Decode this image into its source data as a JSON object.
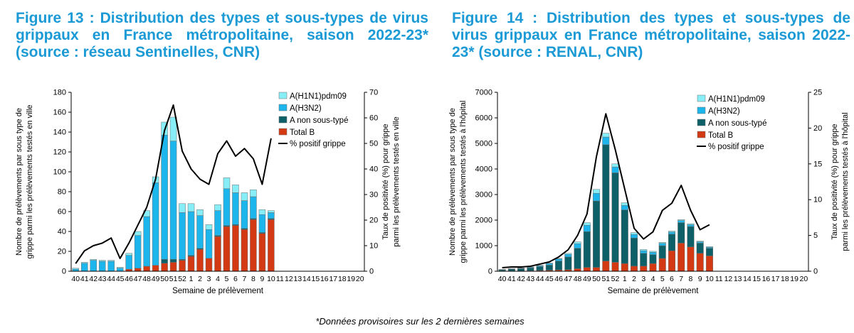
{
  "footnote": "*Données provisoires sur les 2 dernières semaines",
  "colors": {
    "title": "#1b9ad6",
    "h1n1": "#87eef7",
    "h3n2": "#1db6ec",
    "a_nst": "#0d6068",
    "b": "#d33a14",
    "line": "#000000"
  },
  "chart_data": [
    {
      "type": "bar",
      "stacked": true,
      "title": "Figure 13 : Distribution des types et sous-types de virus grippaux en France métropolitaine, saison 2022-23* (source : réseau Sentinelles, CNR)",
      "xlabel": "Semaine de prélèvement",
      "ylabel_line1": "Nombre de prélèvements par sous type de",
      "ylabel_line2": "grippe parmi les prélèvements testés en ville",
      "y2label_line1": "Taux de positivité (%) pour grippe",
      "y2label_line2": "parmi les prélèvements testés en ville",
      "ylim": [
        0,
        180
      ],
      "yticks": [
        "0",
        "20",
        "40",
        "60",
        "80",
        "100",
        "120",
        "140",
        "160",
        "180"
      ],
      "y2lim": [
        0,
        70
      ],
      "y2ticks": [
        "0",
        "10",
        "20",
        "30",
        "40",
        "50",
        "60",
        "70"
      ],
      "categories": [
        "40",
        "41",
        "42",
        "43",
        "44",
        "45",
        "46",
        "47",
        "48",
        "49",
        "50",
        "51",
        "52",
        "1",
        "2",
        "3",
        "4",
        "5",
        "6",
        "7",
        "8",
        "9",
        "10",
        "11",
        "12",
        "13",
        "14",
        "15",
        "16",
        "17",
        "18",
        "19",
        "20"
      ],
      "legend_position": "top-right",
      "series": [
        {
          "name": "A(H1N1)pdm09",
          "key": "h1n1",
          "values": [
            1,
            1,
            1,
            1,
            1,
            1,
            2,
            4,
            6,
            6,
            13,
            24,
            9,
            8,
            6,
            5,
            6,
            11,
            8,
            8,
            7,
            5,
            2,
            null,
            null,
            null,
            null,
            null,
            null,
            null,
            null,
            null,
            null
          ]
        },
        {
          "name": "A(H3N2)",
          "key": "h3n2",
          "values": [
            2,
            8,
            11,
            10,
            10,
            3,
            14,
            33,
            50,
            83,
            125,
            119,
            47,
            44,
            33,
            29,
            25,
            37,
            32,
            28,
            22,
            18,
            6,
            null,
            null,
            null,
            null,
            null,
            null,
            null,
            null,
            null,
            null
          ]
        },
        {
          "name": "A non sous-typé",
          "key": "a_nst",
          "values": [
            0,
            0,
            0,
            0,
            0,
            0,
            0,
            0,
            0,
            0,
            4,
            3,
            1,
            1,
            1,
            0,
            1,
            1,
            1,
            1,
            1,
            1,
            1,
            null,
            null,
            null,
            null,
            null,
            null,
            null,
            null,
            null,
            null
          ]
        },
        {
          "name": "Total B",
          "key": "b",
          "values": [
            0,
            0,
            0,
            0,
            0,
            0,
            2,
            3,
            5,
            6,
            8,
            9,
            11,
            15,
            22,
            13,
            35,
            45,
            46,
            42,
            52,
            38,
            52,
            null,
            null,
            null,
            null,
            null,
            null,
            null,
            null,
            null,
            null
          ]
        }
      ],
      "line": {
        "name": "% positif grippe",
        "axis": "right",
        "values": [
          3,
          8,
          10,
          11,
          13,
          5,
          11,
          18,
          25,
          36,
          55,
          65,
          47,
          40,
          36,
          34,
          46,
          51,
          45,
          48,
          44,
          34,
          52,
          null,
          null,
          null,
          null,
          null,
          null,
          null,
          null,
          null,
          null
        ]
      }
    },
    {
      "type": "bar",
      "stacked": true,
      "title": "Figure 14 : Distribution des types et sous-types de virus grippaux en France métropolitaine, saison 2022-23* (source : RENAL, CNR)",
      "xlabel": "Semaine de prélèvement",
      "ylabel_line1": "Nombre de prélèvements par sous type de",
      "ylabel_line2": "grippe parmi les prélèvements testés à l'hôpital",
      "y2label_line1": "Taux de positivité (%) pour grippe",
      "y2label_line2": "parmi les prélèvements testés à l'hôpital",
      "ylim": [
        0,
        7000
      ],
      "yticks": [
        "0",
        "1000",
        "2000",
        "3000",
        "4000",
        "5000",
        "6000",
        "7000"
      ],
      "y2lim": [
        0,
        25
      ],
      "y2ticks": [
        "0",
        "5",
        "10",
        "15",
        "20",
        "25"
      ],
      "categories": [
        "40",
        "41",
        "42",
        "43",
        "44",
        "45",
        "46",
        "47",
        "48",
        "49",
        "50",
        "51",
        "52",
        "1",
        "2",
        "3",
        "4",
        "5",
        "6",
        "7",
        "8",
        "9",
        "10",
        "11",
        "12",
        "13",
        "14",
        "15",
        "16",
        "17",
        "18",
        "19",
        "20"
      ],
      "legend_position": "top-right",
      "series": [
        {
          "name": "A(H1N1)pdm09",
          "key": "h1n1",
          "values": [
            1,
            2,
            3,
            4,
            5,
            10,
            20,
            40,
            70,
            100,
            150,
            150,
            120,
            100,
            70,
            50,
            40,
            40,
            40,
            40,
            40,
            30,
            20,
            null,
            null,
            null,
            null,
            null,
            null,
            null,
            null,
            null,
            null
          ]
        },
        {
          "name": "A(H3N2)",
          "key": "h3n2",
          "values": [
            9,
            18,
            27,
            36,
            45,
            70,
            80,
            100,
            180,
            250,
            300,
            300,
            230,
            180,
            140,
            100,
            90,
            90,
            80,
            80,
            70,
            50,
            40,
            null,
            null,
            null,
            null,
            null,
            null,
            null,
            null,
            null,
            null
          ]
        },
        {
          "name": "A non sous-typé",
          "key": "a_nst",
          "values": [
            50,
            70,
            90,
            110,
            150,
            200,
            350,
            500,
            800,
            1400,
            2600,
            4550,
            3500,
            2100,
            1100,
            500,
            350,
            500,
            650,
            800,
            800,
            400,
            300,
            null,
            null,
            null,
            null,
            null,
            null,
            null,
            null,
            null,
            null
          ]
        },
        {
          "name": "Total B",
          "key": "b",
          "values": [
            10,
            10,
            10,
            20,
            30,
            40,
            50,
            60,
            100,
            150,
            150,
            400,
            350,
            300,
            200,
            200,
            300,
            500,
            800,
            1100,
            950,
            700,
            600,
            null,
            null,
            null,
            null,
            null,
            null,
            null,
            null,
            null,
            null
          ]
        }
      ],
      "line": {
        "name": "% positif grippe",
        "axis": "right",
        "values": [
          0.5,
          0.6,
          0.6,
          0.7,
          1.0,
          1.3,
          2.0,
          3.0,
          5.0,
          8.0,
          16.0,
          22.0,
          17.0,
          11.5,
          6.0,
          4.5,
          5.5,
          8.5,
          9.5,
          12.0,
          8.5,
          5.8,
          6.5,
          null,
          null,
          null,
          null,
          null,
          null,
          null,
          null,
          null,
          null
        ]
      }
    }
  ]
}
